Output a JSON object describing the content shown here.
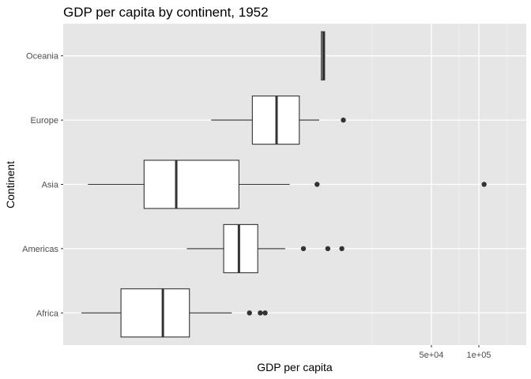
{
  "chart_data": {
    "type": "boxplot",
    "title": "GDP per capita by continent, 1952",
    "xlabel": "GDP per capita",
    "ylabel": "Continent",
    "x_scale": "log10",
    "xlim": [
      230,
      200000
    ],
    "x_ticks": [
      {
        "value": 50000,
        "label": "5e+04"
      },
      {
        "value": 100000,
        "label": "1e+05"
      }
    ],
    "x_minor_gridlines": [
      21000,
      75000,
      150000
    ],
    "grid": true,
    "panel_background": "#e6e6e6",
    "box_fill": "#ffffff",
    "line_color": "#333333",
    "categories": [
      "Africa",
      "Americas",
      "Asia",
      "Europe",
      "Oceania"
    ],
    "boxes": [
      {
        "category": "Africa",
        "whisker_low": 300,
        "q1": 535,
        "median": 987,
        "q3": 1455,
        "whisker_high": 2700,
        "outliers": [
          3500,
          4100,
          4400
        ]
      },
      {
        "category": "Americas",
        "whisker_low": 1400,
        "q1": 2400,
        "median": 3000,
        "q3": 3950,
        "whisker_high": 5900,
        "outliers": [
          7700,
          11000,
          13500
        ]
      },
      {
        "category": "Asia",
        "whisker_low": 330,
        "q1": 750,
        "median": 1200,
        "q3": 3000,
        "whisker_high": 6300,
        "outliers": [
          9400,
          108000
        ]
      },
      {
        "category": "Europe",
        "whisker_low": 2000,
        "q1": 3650,
        "median": 5200,
        "q3": 7250,
        "whisker_high": 9700,
        "outliers": [
          13800
        ]
      },
      {
        "category": "Oceania",
        "whisker_low": 10000,
        "q1": 10000,
        "median": 10300,
        "q3": 10500,
        "whisker_high": 10600,
        "outliers": []
      }
    ]
  }
}
